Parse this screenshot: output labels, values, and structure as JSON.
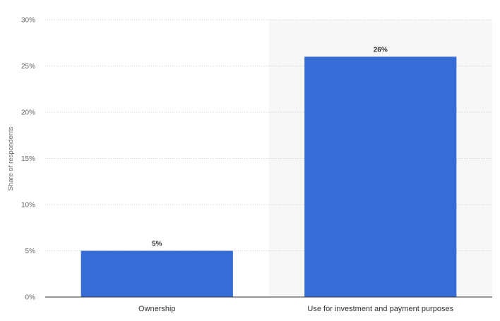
{
  "chart_data": {
    "type": "bar",
    "categories": [
      "Ownership",
      "Use for investment and payment purposes"
    ],
    "values": [
      5,
      26
    ],
    "data_labels": [
      "5%",
      "26%"
    ],
    "ylabel": "Share of respondents",
    "xlabel": "",
    "ylim": [
      0,
      30
    ],
    "yticks": [
      0,
      5,
      10,
      15,
      20,
      25,
      30
    ],
    "ytick_labels": [
      "0%",
      "5%",
      "10%",
      "15%",
      "20%",
      "25%",
      "30%"
    ],
    "grid": true,
    "highlighted_category_index": 1,
    "colors": {
      "bar": "#366cd6",
      "highlight_band": "#f7f7f7",
      "grid": "#cccccc",
      "axis": "#333333"
    }
  }
}
